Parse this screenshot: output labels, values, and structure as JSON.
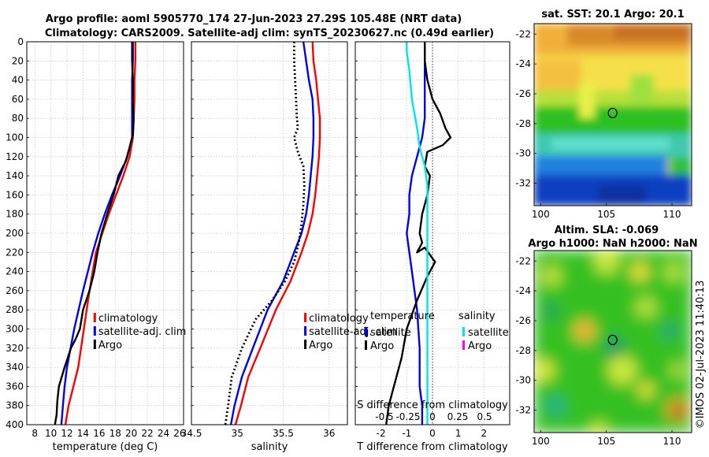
{
  "title_line1": "Argo profile: aoml 5905770_174 27-Jun-2023 27.29S 105.48E (NRT data)",
  "title_line2": "Climatology: CARS2009. Satellite-adj clim: synTS_20230627.nc (0.49d earlier)",
  "credit": "©IMOS 02-Jul-2023 11:40:13",
  "colors": {
    "climatology": "#ff0000",
    "satellite": "#0000ee",
    "argo": "#000000",
    "sat_salinity": "#00e5e5",
    "argo_salinity": "#ff00ff"
  },
  "chart_data": [
    {
      "type": "line",
      "id": "temperature",
      "xlabel": "temperature (deg C)",
      "ylabel": "pressure (dbar)",
      "xlim": [
        7,
        26.5
      ],
      "ylim": [
        400,
        0
      ],
      "xticks": [
        8,
        10,
        12,
        14,
        16,
        18,
        20,
        22,
        24,
        26
      ],
      "yticks": [
        0,
        20,
        40,
        60,
        80,
        100,
        120,
        140,
        160,
        180,
        200,
        220,
        240,
        260,
        280,
        300,
        320,
        340,
        360,
        380,
        400
      ],
      "grid": true,
      "legend": [
        "climatology",
        "satellite-adj. clim",
        "Argo"
      ],
      "series": [
        {
          "name": "climatology",
          "color": "#ff0000",
          "style": "solid",
          "x": [
            20.5,
            20.5,
            20.4,
            20.4,
            20.3,
            20.2,
            19.8,
            19.0,
            18.1,
            17.2,
            16.4,
            15.6,
            14.8,
            14.1,
            13.4,
            12.8,
            12.2,
            11.8
          ],
          "y": [
            0,
            20,
            40,
            60,
            80,
            100,
            120,
            140,
            160,
            180,
            200,
            220,
            260,
            300,
            340,
            360,
            380,
            400
          ]
        },
        {
          "name": "satellite-adj. clim",
          "color": "#0000ee",
          "style": "solid",
          "x": [
            20.2,
            20.2,
            20.1,
            20.1,
            20.1,
            20.1,
            19.5,
            18.6,
            17.6,
            16.7,
            15.9,
            15.2,
            14.0,
            12.9,
            12.0,
            11.7,
            11.5,
            11.3
          ],
          "y": [
            0,
            20,
            40,
            60,
            80,
            100,
            120,
            140,
            160,
            180,
            200,
            220,
            260,
            300,
            340,
            360,
            380,
            400
          ]
        },
        {
          "name": "Argo",
          "color": "#000000",
          "style": "solid",
          "x": [
            20.1,
            20.1,
            20.2,
            20.2,
            20.3,
            20.2,
            19.8,
            19.3,
            18.4,
            17.8,
            17.0,
            16.3,
            15.8,
            15.4,
            14.8,
            14.0,
            13.6,
            13.1,
            12.5,
            11.7,
            11.0,
            10.8,
            10.7,
            10.5
          ],
          "y": [
            0,
            20,
            40,
            60,
            80,
            97,
            110,
            125,
            140,
            160,
            180,
            200,
            220,
            240,
            260,
            280,
            300,
            310,
            320,
            340,
            360,
            375,
            390,
            400
          ]
        }
      ]
    },
    {
      "type": "line",
      "id": "salinity",
      "xlabel": "salinity",
      "xlim": [
        34.5,
        36.2
      ],
      "ylim": [
        400,
        0
      ],
      "xticks": [
        34.5,
        35,
        35.5,
        36
      ],
      "xticklabels": [
        "34.5",
        "35",
        "35.5",
        "36"
      ],
      "grid": true,
      "legend": [
        "climatology",
        "satellite-adj. clim",
        "Argo"
      ],
      "series": [
        {
          "name": "climatology",
          "color": "#ff0000",
          "style": "solid",
          "x": [
            35.82,
            35.83,
            35.86,
            35.88,
            35.9,
            35.9,
            35.89,
            35.87,
            35.85,
            35.82,
            35.77,
            35.7,
            35.58,
            35.42,
            35.25,
            35.12,
            35.04,
            34.98
          ],
          "y": [
            0,
            20,
            40,
            60,
            80,
            100,
            120,
            140,
            160,
            180,
            200,
            220,
            250,
            280,
            320,
            350,
            380,
            400
          ]
        },
        {
          "name": "satellite-adj. clim",
          "color": "#0000ee",
          "style": "solid",
          "x": [
            35.72,
            35.75,
            35.78,
            35.82,
            35.83,
            35.83,
            35.82,
            35.8,
            35.78,
            35.75,
            35.7,
            35.62,
            35.5,
            35.33,
            35.17,
            35.05,
            34.97,
            34.93
          ],
          "y": [
            0,
            20,
            40,
            60,
            80,
            100,
            120,
            140,
            160,
            180,
            200,
            220,
            250,
            280,
            320,
            350,
            380,
            400
          ]
        },
        {
          "name": "Argo",
          "color": "#000000",
          "style": "dotted",
          "x": [
            35.62,
            35.62,
            35.63,
            35.64,
            35.65,
            35.66,
            35.62,
            35.66,
            35.72,
            35.73,
            35.72,
            35.7,
            35.67,
            35.62,
            35.52,
            35.38,
            35.2,
            35.05,
            34.94,
            34.9,
            34.87
          ],
          "y": [
            0,
            20,
            40,
            60,
            80,
            90,
            100,
            115,
            130,
            150,
            170,
            190,
            210,
            230,
            250,
            270,
            290,
            320,
            350,
            380,
            400
          ]
        }
      ]
    },
    {
      "type": "line",
      "id": "difference",
      "xlabel": "T difference from climatology",
      "xlabel_top": "S difference from climatology",
      "xlim": [
        -3,
        3
      ],
      "ylim": [
        400,
        0
      ],
      "xticks": [
        -2,
        -1,
        0,
        1,
        2
      ],
      "xticklabels": [
        "-2",
        "-1",
        "0",
        "1",
        "2"
      ],
      "top_ticklabels": [
        "-0.5",
        "-0.25",
        "0",
        "0.25",
        "0.5"
      ],
      "legend_left_title": "temperature",
      "legend_right_title": "salinity",
      "legend_left": [
        "satellite",
        "Argo"
      ],
      "legend_right": [
        "satellite",
        "Argo"
      ],
      "series": [
        {
          "name": "T satellite",
          "color": "#0000ee",
          "style": "solid",
          "x": [
            -0.3,
            -0.3,
            -0.3,
            -0.3,
            -0.3,
            -0.4,
            -0.6,
            -0.8,
            -0.9,
            -0.9,
            -1.0,
            -0.9,
            -0.8,
            -0.6,
            -0.5,
            -0.5,
            -0.4,
            -0.4
          ],
          "y": [
            0,
            20,
            40,
            60,
            80,
            100,
            120,
            140,
            160,
            180,
            200,
            220,
            240,
            280,
            320,
            360,
            380,
            400
          ]
        },
        {
          "name": "T Argo",
          "color": "#000000",
          "style": "solid",
          "x": [
            -0.3,
            -0.3,
            -0.2,
            0.0,
            0.3,
            0.5,
            0.7,
            0.4,
            -0.2,
            -0.3,
            -0.1,
            -0.2,
            -0.4,
            -0.5,
            -0.4,
            -0.6,
            -0.3,
            0.1,
            -0.2,
            -0.6,
            -1.0,
            -1.2,
            -1.5,
            -1.7,
            -1.8
          ],
          "y": [
            0,
            20,
            40,
            60,
            75,
            90,
            100,
            108,
            115,
            130,
            140,
            160,
            180,
            200,
            210,
            220,
            215,
            230,
            245,
            270,
            300,
            330,
            360,
            380,
            400
          ]
        },
        {
          "name": "S satellite",
          "color": "#00e5e5",
          "style": "solid",
          "x": [
            -1.0,
            -1.0,
            -0.9,
            -0.8,
            -0.6,
            -0.5,
            -0.3,
            -0.2,
            -0.2,
            -0.2,
            -0.2,
            -0.2,
            -0.2,
            -0.2,
            -0.2,
            -0.2,
            -0.2
          ],
          "y": [
            0,
            10,
            30,
            60,
            90,
            110,
            130,
            150,
            180,
            210,
            250,
            290,
            320,
            350,
            370,
            390,
            400
          ]
        }
      ]
    },
    {
      "type": "heatmap",
      "id": "sst_map",
      "title": "sat. SST: 20.1 Argo: 20.1",
      "xlim": [
        99.5,
        111.5
      ],
      "ylim": [
        -33.5,
        -21.3
      ],
      "xticks": [
        100,
        105,
        110
      ],
      "xticklabels": [
        "100",
        "105",
        "110"
      ],
      "yticks": [
        -22,
        -24,
        -26,
        -28,
        -30,
        -32
      ],
      "yticklabels": [
        "-22",
        "-24",
        "-26",
        "-28",
        "-30",
        "-32"
      ],
      "marker": {
        "lon": 105.48,
        "lat": -27.29
      }
    },
    {
      "type": "heatmap",
      "id": "sla_map",
      "title_line1": "Altim. SLA: -0.069",
      "title_line2": "Argo h1000: NaN h2000: NaN",
      "xlim": [
        99.5,
        111.5
      ],
      "ylim": [
        -33.5,
        -21.3
      ],
      "xticks": [
        100,
        105,
        110
      ],
      "xticklabels": [
        "100",
        "105",
        "110"
      ],
      "yticks": [
        -22,
        -24,
        -26,
        -28,
        -30,
        -32
      ],
      "yticklabels": [
        "-22",
        "-24",
        "-26",
        "-28",
        "-30",
        "-32"
      ],
      "marker": {
        "lon": 105.48,
        "lat": -27.29
      }
    }
  ]
}
